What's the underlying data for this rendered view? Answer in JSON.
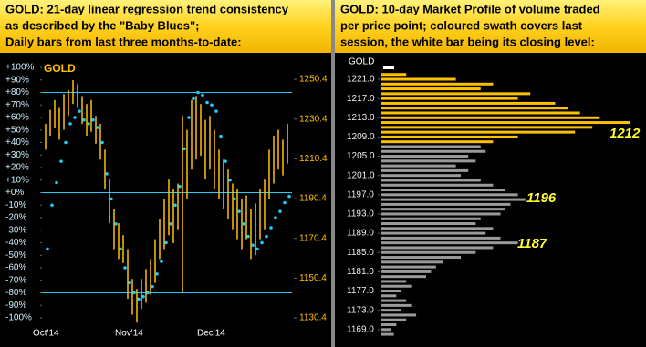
{
  "chart_data": [
    {
      "type": "hilo",
      "title": [
        "GOLD:  21-day linear regression trend consistency",
        "as described by the \"Baby Blues\";",
        "Daily bars from last three months-to-date:"
      ],
      "label": "GOLD",
      "categories": [
        "Oct'14",
        null,
        null,
        null,
        null,
        null,
        null,
        null,
        null,
        null,
        null,
        null,
        null,
        null,
        null,
        null,
        null,
        null,
        "Nov'14",
        null,
        null,
        null,
        null,
        null,
        null,
        null,
        null,
        null,
        null,
        null,
        null,
        null,
        null,
        null,
        null,
        null,
        "Dec'14",
        null,
        null,
        null,
        null,
        null,
        null,
        null,
        null,
        null,
        null,
        null,
        null,
        null,
        null,
        null,
        null,
        null
      ],
      "bars": {
        "color": "#ffc000",
        "axis": "y2",
        "high": [
          1228,
          1235,
          1240,
          1236,
          1243,
          1245,
          1250,
          1248,
          1242,
          1238,
          1240,
          1232,
          1228,
          1215,
          1200,
          1185,
          1178,
          1172,
          1165,
          1150,
          1145,
          1150,
          1155,
          1160,
          1170,
          1180,
          1190,
          1200,
          1195,
          1198,
          1232,
          1225,
          1240,
          1242,
          1238,
          1230,
          1232,
          1225,
          1215,
          1210,
          1205,
          1198,
          1195,
          1190,
          1192,
          1185,
          1188,
          1195,
          1200,
          1215,
          1222,
          1225,
          1220,
          1228
        ],
        "low": [
          1215,
          1222,
          1226,
          1220,
          1225,
          1232,
          1238,
          1236,
          1228,
          1222,
          1224,
          1218,
          1210,
          1195,
          1178,
          1165,
          1160,
          1158,
          1140,
          1132,
          1128,
          1135,
          1138,
          1142,
          1148,
          1160,
          1165,
          1172,
          1168,
          1175,
          1143,
          1190,
          1205,
          1210,
          1212,
          1200,
          1205,
          1195,
          1190,
          1185,
          1180,
          1175,
          1170,
          1165,
          1170,
          1160,
          1162,
          1170,
          1175,
          1190,
          1198,
          1205,
          1202,
          1208
        ]
      },
      "dots": {
        "color": "#22ccff",
        "values": [
          -45,
          -10,
          8,
          25,
          40,
          55,
          60,
          65,
          58,
          55,
          58,
          52,
          40,
          15,
          -5,
          -25,
          -45,
          -60,
          -72,
          -80,
          -85,
          -83,
          -80,
          -75,
          -65,
          -55,
          -40,
          -25,
          -10,
          5,
          35,
          60,
          75,
          80,
          78,
          72,
          70,
          65,
          45,
          25,
          10,
          -5,
          -15,
          -25,
          -35,
          -42,
          -45,
          -40,
          -35,
          -28,
          -20,
          -15,
          -8,
          -3
        ]
      },
      "hlines": [
        80,
        0,
        -80
      ],
      "ylim": [
        -100,
        100
      ],
      "yticks": [
        {
          "value": 100,
          "label": "+100%"
        },
        {
          "value": 90,
          "label": "+90%"
        },
        {
          "value": 80,
          "label": "+80%"
        },
        {
          "value": 70,
          "label": "+70%"
        },
        {
          "value": 60,
          "label": "+60%"
        },
        {
          "value": 50,
          "label": "+50%"
        },
        {
          "value": 40,
          "label": "+40%"
        },
        {
          "value": 30,
          "label": "+30%"
        },
        {
          "value": 20,
          "label": "+20%"
        },
        {
          "value": 10,
          "label": "+10%"
        },
        {
          "value": 0,
          "label": "+0%"
        },
        {
          "value": -10,
          "label": "-10%"
        },
        {
          "value": -20,
          "label": "-20%"
        },
        {
          "value": -30,
          "label": "-30%"
        },
        {
          "value": -40,
          "label": "-40%"
        },
        {
          "value": -50,
          "label": "-50%"
        },
        {
          "value": -60,
          "label": "-60%"
        },
        {
          "value": -70,
          "label": "-70%"
        },
        {
          "value": -80,
          "label": "-80%"
        },
        {
          "value": -90,
          "label": "-90%"
        },
        {
          "value": -100,
          "label": "-100%"
        }
      ],
      "y2lim": [
        1130.4,
        1256.4
      ],
      "y2ticks": [
        1250.4,
        1230.4,
        1210.4,
        1190.4,
        1170.4,
        1150.4,
        1130.4
      ]
    },
    {
      "type": "profile",
      "title": [
        "GOLD:  10-day Market Profile of volume traded",
        "per price point; coloured swath covers last",
        "session, the white bar being its closing level:"
      ],
      "label": "GOLD",
      "xlim": [
        0,
        100
      ],
      "series": [
        {
          "color": "#ffc000",
          "levels": [
            1222,
            1221,
            1220,
            1219,
            1218,
            1217,
            1216,
            1215,
            1214,
            1213,
            1212,
            1211,
            1210,
            1209,
            1208
          ],
          "values": [
            10,
            30,
            45,
            40,
            60,
            55,
            70,
            75,
            80,
            88,
            100,
            85,
            78,
            55,
            45
          ]
        },
        {
          "color": "#9a9a9a",
          "levels": [
            1207,
            1206,
            1205,
            1204,
            1203,
            1202,
            1201,
            1200,
            1199,
            1198,
            1197,
            1196,
            1195,
            1194,
            1193,
            1192,
            1191,
            1190,
            1189,
            1188,
            1187,
            1186,
            1185,
            1184,
            1183,
            1182,
            1181,
            1180,
            1179,
            1178,
            1177,
            1176,
            1175,
            1174,
            1173,
            1172,
            1171,
            1170,
            1169,
            1168
          ],
          "values": [
            40,
            42,
            35,
            38,
            30,
            35,
            32,
            40,
            45,
            50,
            55,
            58,
            52,
            50,
            48,
            40,
            38,
            45,
            42,
            48,
            55,
            45,
            38,
            32,
            25,
            22,
            20,
            18,
            10,
            12,
            8,
            6,
            10,
            12,
            8,
            14,
            10,
            6,
            4,
            5
          ]
        }
      ],
      "annotations": [
        "1212",
        "1196",
        "1187"
      ],
      "ylim": [
        1166.5,
        1224.5
      ],
      "yticks": [
        {
          "value": 1221,
          "label": "1221.0"
        },
        {
          "value": 1217,
          "label": "1217.0"
        },
        {
          "value": 1213,
          "label": "1213.0"
        },
        {
          "value": 1209,
          "label": "1209.0"
        },
        {
          "value": 1205,
          "label": "1205.0"
        },
        {
          "value": 1201,
          "label": "1201.0"
        },
        {
          "value": 1197,
          "label": "1197.0"
        },
        {
          "value": 1193,
          "label": "1193.0"
        },
        {
          "value": 1189,
          "label": "1189.0"
        },
        {
          "value": 1185,
          "label": "1185.0"
        },
        {
          "value": 1181,
          "label": "1181.0"
        },
        {
          "value": 1177,
          "label": "1177.0"
        },
        {
          "value": 1173,
          "label": "1173.0"
        },
        {
          "value": 1169,
          "label": "1169.0"
        }
      ]
    }
  ]
}
